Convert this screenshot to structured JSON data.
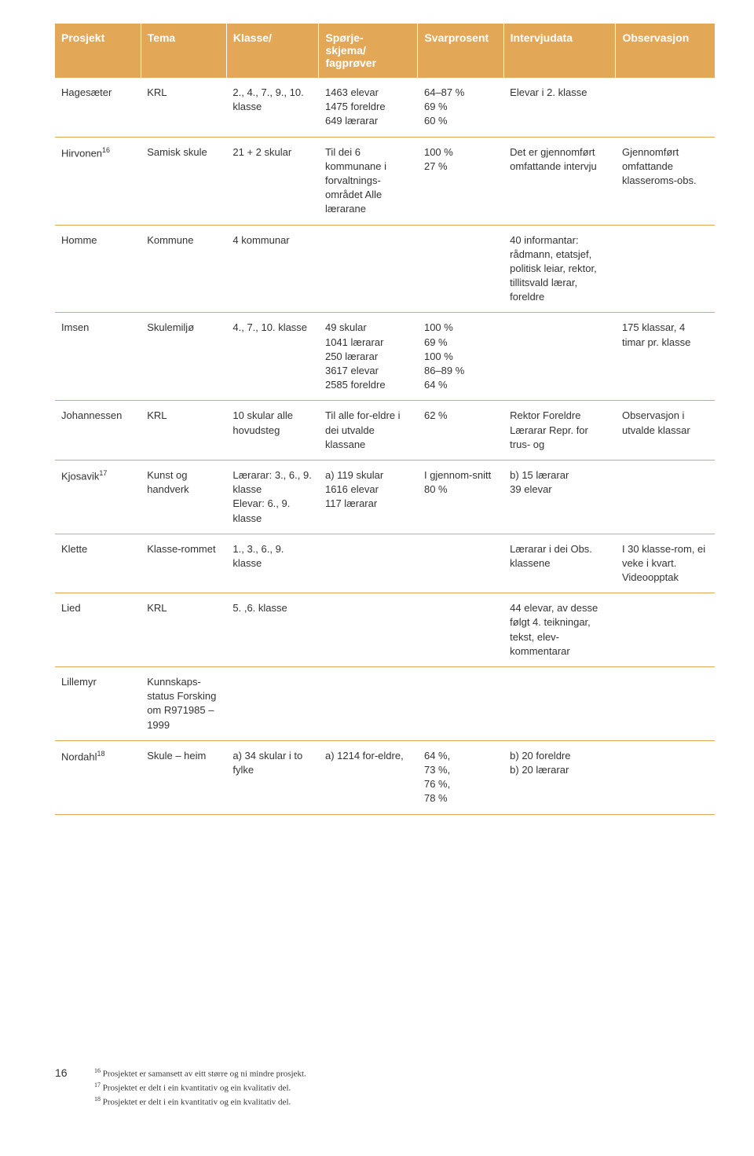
{
  "table": {
    "headerBg": "#e3a857",
    "headerColor": "#ffffff",
    "borderColor": "#e3a857",
    "columns": [
      {
        "key": "prosjekt",
        "label": "Prosjekt"
      },
      {
        "key": "tema",
        "label": "Tema"
      },
      {
        "key": "klasse",
        "label": "Klasse/"
      },
      {
        "key": "spor",
        "label": "Spørje-\nskjema/\nfagprøver"
      },
      {
        "key": "svar",
        "label": "Svarprosent"
      },
      {
        "key": "intervju",
        "label": "Intervjudata"
      },
      {
        "key": "obs",
        "label": "Observasjon"
      }
    ],
    "rows": [
      {
        "prosjekt": "Hagesæter",
        "tema": "KRL",
        "klasse": "2., 4., 7., 9., 10. klasse",
        "spor": "1463 elevar\n1475 foreldre\n649 lærarar",
        "svar": "64–87 %\n69 %\n60 %",
        "intervju": "Elevar i 2. klasse",
        "obs": ""
      },
      {
        "prosjekt": "Hirvonen",
        "prosjekt_sup": "16",
        "tema": "Samisk skule",
        "klasse": "21 + 2 skular",
        "spor": "Til dei 6 kommunane i forvaltnings-området Alle lærarane",
        "svar": "100 %\n27 %",
        "intervju": "Det er gjennomført omfattande intervju",
        "obs": "Gjennomført omfattande klasseroms-obs."
      },
      {
        "prosjekt": "Homme",
        "tema": "Kommune",
        "klasse": "4 kommunar",
        "spor": "",
        "svar": "",
        "intervju": "40 informantar: rådmann, etatsjef, politisk leiar, rektor, tillitsvald lærar, foreldre",
        "obs": ""
      },
      {
        "prosjekt": "Imsen",
        "tema": "Skulemiljø",
        "klasse": "4., 7., 10. klasse",
        "spor": "49 skular\n1041 lærarar\n250 lærarar\n3617 elevar\n2585 foreldre",
        "svar": "100 %\n69 %\n100 %\n86–89 %\n64 %",
        "intervju": "",
        "obs": "175 klassar, 4 timar pr. klasse"
      },
      {
        "prosjekt": "Johannessen",
        "tema": "KRL",
        "klasse": "10 skular alle hovudsteg",
        "spor": "Til alle for-eldre i dei utvalde klassane",
        "svar": "62 %",
        "intervju": "Rektor Foreldre Lærarar Repr. for trus- og",
        "obs": "Observasjon i utvalde klassar"
      },
      {
        "prosjekt": "Kjosavik",
        "prosjekt_sup": "17",
        "tema": "Kunst og handverk",
        "klasse": "Lærarar: 3., 6., 9. klasse\nElevar: 6., 9. klasse",
        "spor": "a) 119 skular\n1616 elevar\n117 lærarar",
        "svar": "I gjennom-snitt 80 %",
        "intervju": "b) 15 lærarar\n39 elevar",
        "obs": ""
      },
      {
        "prosjekt": "Klette",
        "tema": "Klasse-rommet",
        "klasse": "1., 3., 6., 9. klasse",
        "spor": "",
        "svar": "",
        "intervju": "Lærarar i dei Obs. klassene",
        "obs": "I 30 klasse-rom, ei veke i kvart. Videoopptak"
      },
      {
        "prosjekt": "Lied",
        "tema": "KRL",
        "klasse": "5. ,6. klasse",
        "spor": "",
        "svar": "",
        "intervju": "44 elevar, av desse følgt 4. teikningar, tekst, elev-kommentarar",
        "obs": ""
      },
      {
        "prosjekt": "Lillemyr",
        "tema": "Kunnskaps-status Forsking om R971985 – 1999",
        "klasse": "",
        "spor": "",
        "svar": "",
        "intervju": "",
        "obs": ""
      },
      {
        "prosjekt": "Nordahl",
        "prosjekt_sup": "18",
        "tema": "Skule – heim",
        "klasse": "a) 34 skular i to fylke",
        "spor": "a) 1214 for-eldre,",
        "svar": "64 %,\n73 %,\n76 %,\n78 %",
        "intervju": "b) 20 foreldre\nb) 20 lærarar",
        "obs": ""
      }
    ]
  },
  "footer": {
    "pageNumber": "16",
    "notes": [
      {
        "sup": "16",
        "text": "Prosjektet er samansett av eitt større og ni mindre prosjekt."
      },
      {
        "sup": "17",
        "text": "Prosjektet er delt i ein kvantitativ og ein kvalitativ del."
      },
      {
        "sup": "18",
        "text": "Prosjektet er delt i ein kvantitativ og ein kvalitativ del."
      }
    ]
  }
}
